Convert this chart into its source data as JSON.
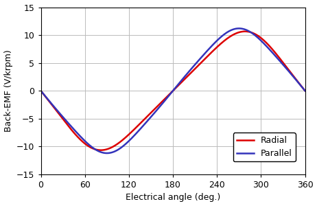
{
  "xlabel": "Electrical angle (deg.)",
  "ylabel": "Back-EMF (V/krpm)",
  "xlim": [
    0,
    360
  ],
  "ylim": [
    -15,
    15
  ],
  "xticks": [
    0,
    60,
    120,
    180,
    240,
    300,
    360
  ],
  "yticks": [
    -15,
    -10,
    -5,
    0,
    5,
    10,
    15
  ],
  "parallel_color": "#3333bb",
  "radial_color": "#dd0000",
  "line_width": 1.8,
  "legend_labels": [
    "Parallel",
    "Radial"
  ],
  "bg_color": "#ffffff",
  "grid_color": "#bbbbbb"
}
